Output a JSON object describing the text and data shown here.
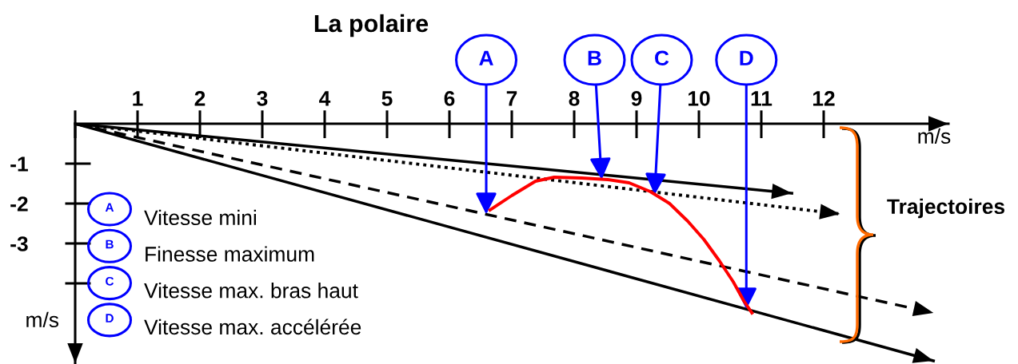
{
  "chart_data": {
    "type": "line",
    "title": "La polaire",
    "xlabel": "m/s",
    "ylabel": "m/s",
    "x": [
      6.65,
      7.0,
      7.38,
      7.68,
      8.12,
      8.54,
      8.88,
      9.22,
      9.53,
      9.82,
      10.08,
      10.33,
      10.55,
      10.72,
      10.85
    ],
    "series": [
      {
        "color": "#ff0000",
        "values": [
          -2.16,
          -1.8,
          -1.44,
          -1.34,
          -1.36,
          -1.4,
          -1.48,
          -1.7,
          -2.0,
          -2.44,
          -2.9,
          -3.44,
          -3.96,
          -4.44,
          -4.74
        ]
      },
      {
        "color": "#000000",
        "x": [
          0,
          11.49
        ],
        "values": [
          0,
          -1.74
        ],
        "line_style": "solid"
      },
      {
        "color": "#000000",
        "x": [
          0,
          12.26
        ],
        "values": [
          0,
          -2.26
        ],
        "line_style": "dotted"
      },
      {
        "color": "#000000",
        "x": [
          0,
          13.76
        ],
        "values": [
          0,
          -4.74
        ],
        "line_style": "dashed"
      },
      {
        "color": "#000000",
        "x": [
          0,
          13.76
        ],
        "values": [
          0,
          -5.94
        ],
        "line_style": "solid"
      }
    ],
    "xlim": [
      0,
      14
    ],
    "ylim": [
      -6,
      0
    ],
    "xticks": [
      {
        "value": 0,
        "label": null
      },
      1,
      2,
      3,
      4,
      5,
      6,
      7,
      8,
      9,
      10,
      11,
      12
    ],
    "yticks": [
      {
        "value": -4,
        "label": null
      },
      -3,
      -2,
      -1
    ],
    "annotations": [
      {
        "text": "A",
        "x": 6.59,
        "y": -2.27
      },
      {
        "text": "B",
        "x": 8.44,
        "y": -1.4
      },
      {
        "text": "C",
        "x": 9.29,
        "y": -1.78
      },
      {
        "text": "D",
        "x": 10.76,
        "y": -4.65
      },
      "A",
      "Vitesse mini",
      "B",
      "Finesse maximum",
      "C",
      "Vitesse max. bras haut",
      "D",
      "Vitesse max. accélérée",
      "Trajectoires"
    ]
  }
}
